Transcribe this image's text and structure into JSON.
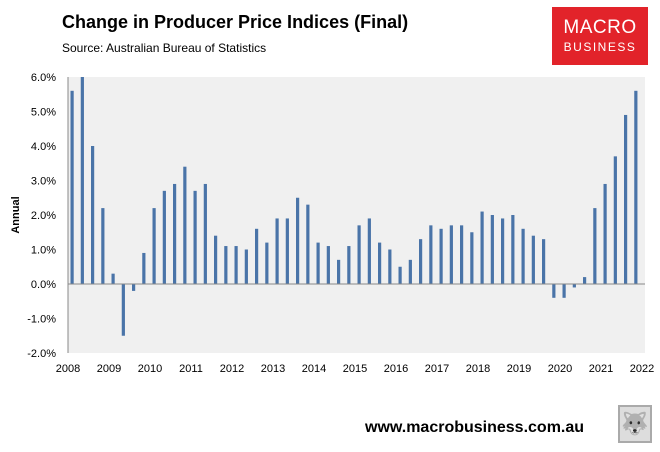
{
  "header": {
    "title": "Change in Producer Price Indices (Final)",
    "source": "Source:  Australian Bureau of Statistics"
  },
  "logo": {
    "line1": "MACRO",
    "line2": "BUSINESS"
  },
  "footer": {
    "url": "www.macrobusiness.com.au"
  },
  "colors": {
    "bar": "#4a74a8",
    "plot_bg": "#f0f0f0",
    "logo": "#e2232a"
  },
  "chart_data": {
    "type": "bar",
    "title": "Change in Producer Price Indices (Final)",
    "ylabel": "Annual",
    "xlabel": "",
    "ylim": [
      -2,
      6
    ],
    "yticks": [
      "-2.0%",
      "-1.0%",
      "0.0%",
      "1.0%",
      "2.0%",
      "3.0%",
      "4.0%",
      "5.0%",
      "6.0%"
    ],
    "xticks": [
      "2008",
      "2009",
      "2010",
      "2011",
      "2012",
      "2013",
      "2014",
      "2015",
      "2016",
      "2017",
      "2018",
      "2019",
      "2020",
      "2021",
      "2022"
    ],
    "frequency": "quarterly",
    "start": "2008 Q1",
    "values": [
      5.6,
      6.0,
      4.0,
      2.2,
      0.3,
      -1.5,
      -0.2,
      0.9,
      2.2,
      2.7,
      2.9,
      3.4,
      2.7,
      2.9,
      1.4,
      1.1,
      1.1,
      1.0,
      1.6,
      1.2,
      1.9,
      1.9,
      2.5,
      2.3,
      1.2,
      1.1,
      0.7,
      1.1,
      1.7,
      1.9,
      1.2,
      1.0,
      0.5,
      0.7,
      1.3,
      1.7,
      1.6,
      1.7,
      1.7,
      1.5,
      2.1,
      2.0,
      1.9,
      2.0,
      1.6,
      1.4,
      1.3,
      -0.4,
      -0.4,
      -0.1,
      0.2,
      2.2,
      2.9,
      3.7,
      4.9,
      5.6
    ],
    "grid": false,
    "legend": "none"
  }
}
